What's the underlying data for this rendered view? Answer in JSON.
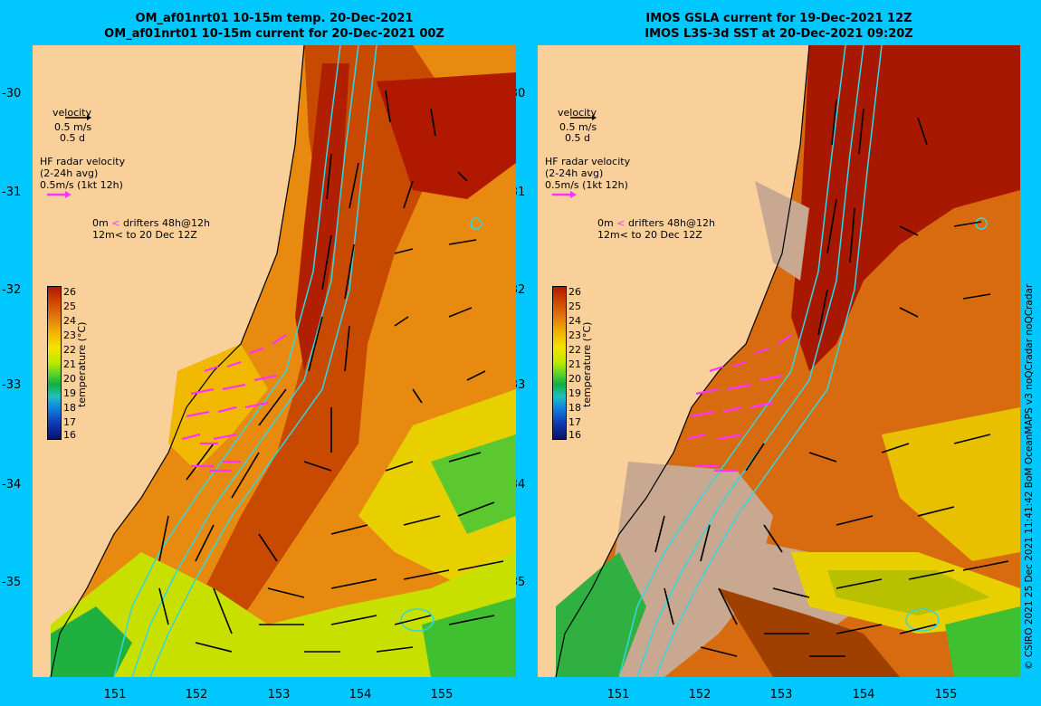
{
  "left_panel": {
    "title_line1": "OM_af01nrt01 10-15m temp. 20-Dec-2021",
    "title_line2": "OM_af01nrt01 10-15m current for 20-Dec-2021 00Z"
  },
  "right_panel": {
    "title_line1": "IMOS GSLA current for 19-Dec-2021 12Z",
    "title_line2": "IMOS L3S-3d SST at 20-Dec-2021 09:20Z"
  },
  "legend": {
    "velocity_title": "velocity",
    "velocity_scale": "0.5 m/s",
    "velocity_time": "0.5 d",
    "hf_radar_title": "HF radar velocity",
    "hf_radar_avg": "(2-24h avg)",
    "hf_radar_scale": "0.5m/s (1kt 12h)",
    "drifter_line1_depth": "0m",
    "drifter_line1_text": "drifters 48h@12h",
    "drifter_line2_depth": "12m",
    "drifter_line2_text": "to 20 Dec 12Z"
  },
  "colorbar": {
    "label": "temperature (°C)",
    "ticks": [
      "26",
      "25",
      "24",
      "23",
      "22",
      "21",
      "20",
      "19",
      "18",
      "17",
      "16"
    ]
  },
  "axes": {
    "y_ticks": [
      "-30",
      "-31",
      "-32",
      "-33",
      "-34",
      "-35"
    ],
    "x_ticks": [
      "151",
      "152",
      "153",
      "154",
      "155"
    ]
  },
  "credit": "© CSIRO 2021  25 Dec 2021 11:41:42 BoM OceanMAPS v3 noQCradar noQCradar",
  "colors": {
    "background": "#00c8ff",
    "land": "#f9cf9a",
    "hf_radar_arrow": "#ff33ff",
    "isobath": "#30d8e0",
    "warm": "#b01800",
    "cloud_mask": "#c8a890"
  }
}
